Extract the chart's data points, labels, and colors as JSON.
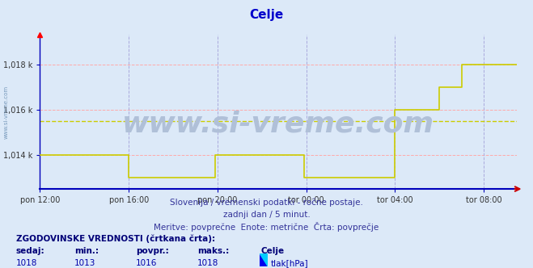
{
  "title": "Celje",
  "title_color": "#0000cc",
  "title_fontsize": 11,
  "bg_color": "#dce9f8",
  "plot_bg_color": "#dce9f8",
  "grid_color": "#ffaaaa",
  "grid_color_v": "#aaaadd",
  "axis_color": "#0000bb",
  "line_color": "#cccc00",
  "line_width": 1.0,
  "watermark_text": "www.si-vreme.com",
  "watermark_color": "#b0c0d8",
  "subtitle1": "Slovenija / vremenski podatki - ročne postaje.",
  "subtitle2": "zadnji dan / 5 minut.",
  "subtitle3": "Meritve: povprečne  Enote: metrične  Črta: povprečje",
  "subtitle_color": "#333399",
  "footer_label1": "ZGODOVINSKE VREDNOSTI (črtkana črta):",
  "footer_unit": "tlak[hPa]",
  "ylim": [
    1012.5,
    1019.3
  ],
  "yticks": [
    1014,
    1016,
    1018
  ],
  "ytick_labels": [
    "1,014 k",
    "1,016 k",
    "1,018 k"
  ],
  "xlim_hours": [
    0,
    21.5
  ],
  "xtick_positions": [
    0,
    4,
    8,
    12,
    16,
    20
  ],
  "xtick_labels": [
    "pon 12:00",
    "pon 16:00",
    "pon 20:00",
    "tor 00:00",
    "tor 04:00",
    "tor 08:00"
  ],
  "avg_line_value": 1015.5,
  "avg_line_color": "#cccc00",
  "stats": {
    "sedaj": 1018,
    "min": 1013,
    "povpr": 1016,
    "maks": 1018
  },
  "time_series_hours": [
    0,
    3.9,
    4.0,
    7.5,
    7.9,
    8.0,
    8.1,
    11.8,
    11.9,
    12.1,
    12.5,
    13.0,
    13.5,
    14.0,
    14.5,
    15.0,
    15.5,
    16.0,
    16.5,
    17.0,
    17.5,
    17.9,
    18.0,
    18.1,
    18.5,
    19.0,
    19.5,
    20.0,
    20.5,
    21.0,
    21.5
  ],
  "time_series_vals": [
    1014,
    1014,
    1013,
    1013,
    1014,
    1014,
    1014,
    1014,
    1013,
    1013,
    1013,
    1013,
    1013,
    1013,
    1013,
    1013,
    1013,
    1016,
    1016,
    1016,
    1016,
    1016,
    1017,
    1017,
    1017,
    1018,
    1018,
    1018,
    1018,
    1018,
    1018
  ]
}
